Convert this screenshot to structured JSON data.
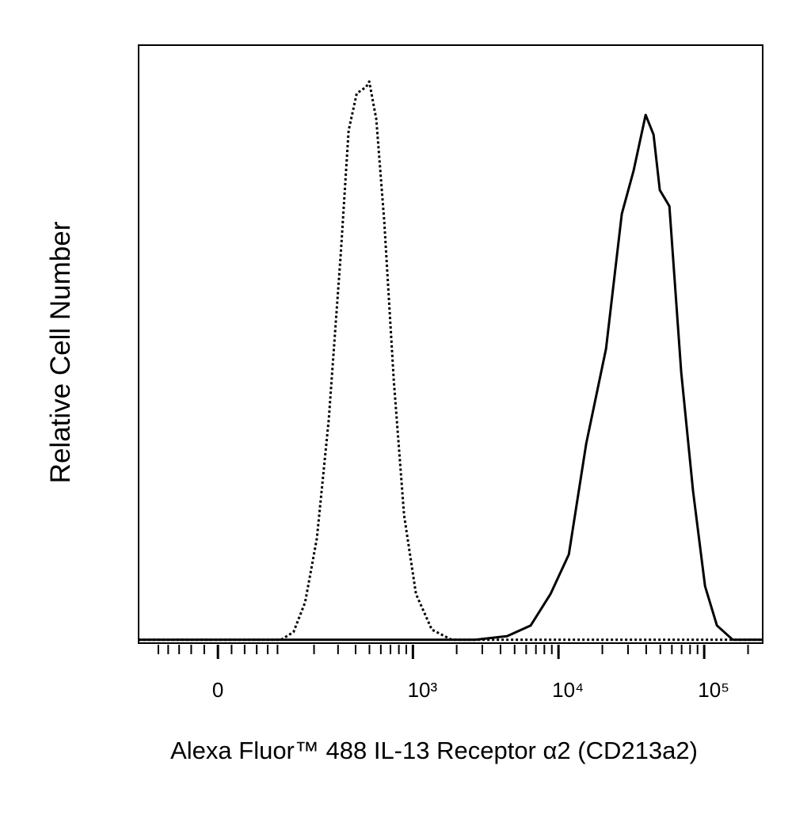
{
  "chart_data": {
    "type": "line",
    "xlabel": "Alexa Fluor™ 488 IL-13 Receptor α2 (CD213a2)",
    "ylabel": "Relative Cell Number",
    "xscale": "biexponential",
    "xlim": [
      -148,
      252000
    ],
    "ylim": [
      0,
      100
    ],
    "xticks": [
      0,
      {
        "value": 1000,
        "label": "10³"
      },
      {
        "value": 10000,
        "label": "10⁴"
      },
      {
        "value": 100000,
        "label": "10⁵"
      }
    ],
    "xminorticks": [
      -100,
      -80,
      -60,
      -40,
      -20,
      20,
      40,
      60,
      80,
      100,
      200,
      300,
      400,
      500,
      600,
      700,
      800,
      900,
      2000,
      3000,
      4000,
      5000,
      6000,
      7000,
      8000,
      9000,
      20000,
      30000,
      40000,
      50000,
      60000,
      70000,
      80000,
      90000,
      200000
    ],
    "series": [
      {
        "style": "dotted",
        "color": "#000000",
        "x": [
          -148,
          108,
          138,
          171,
          210,
          257,
          314,
          357,
          407,
          474,
          498,
          558,
          634,
          738,
          869,
          1050,
          1349,
          1845,
          252000
        ],
        "values": [
          0.3,
          0.3,
          1.6,
          6.6,
          17.3,
          37.2,
          65.1,
          85.7,
          91.9,
          93,
          93.9,
          87.6,
          70.4,
          43.8,
          21.2,
          8.0,
          2.0,
          0.3,
          0.3
        ]
      },
      {
        "style": "solid",
        "color": "#000000",
        "x": [
          -148,
          2686,
          4434,
          6449,
          8823,
          11767,
          15502,
          21188,
          27204,
          32826,
          39624,
          44896,
          49588,
          57684,
          69552,
          83904,
          101292,
          122176,
          156860,
          252000
        ],
        "values": [
          0.3,
          0.3,
          0.9,
          2.7,
          8.0,
          14.6,
          33.2,
          49.1,
          71.7,
          79.0,
          88.3,
          85.0,
          75.7,
          73.0,
          45.2,
          25.2,
          9.3,
          2.7,
          0.3,
          0.3
        ]
      }
    ]
  }
}
